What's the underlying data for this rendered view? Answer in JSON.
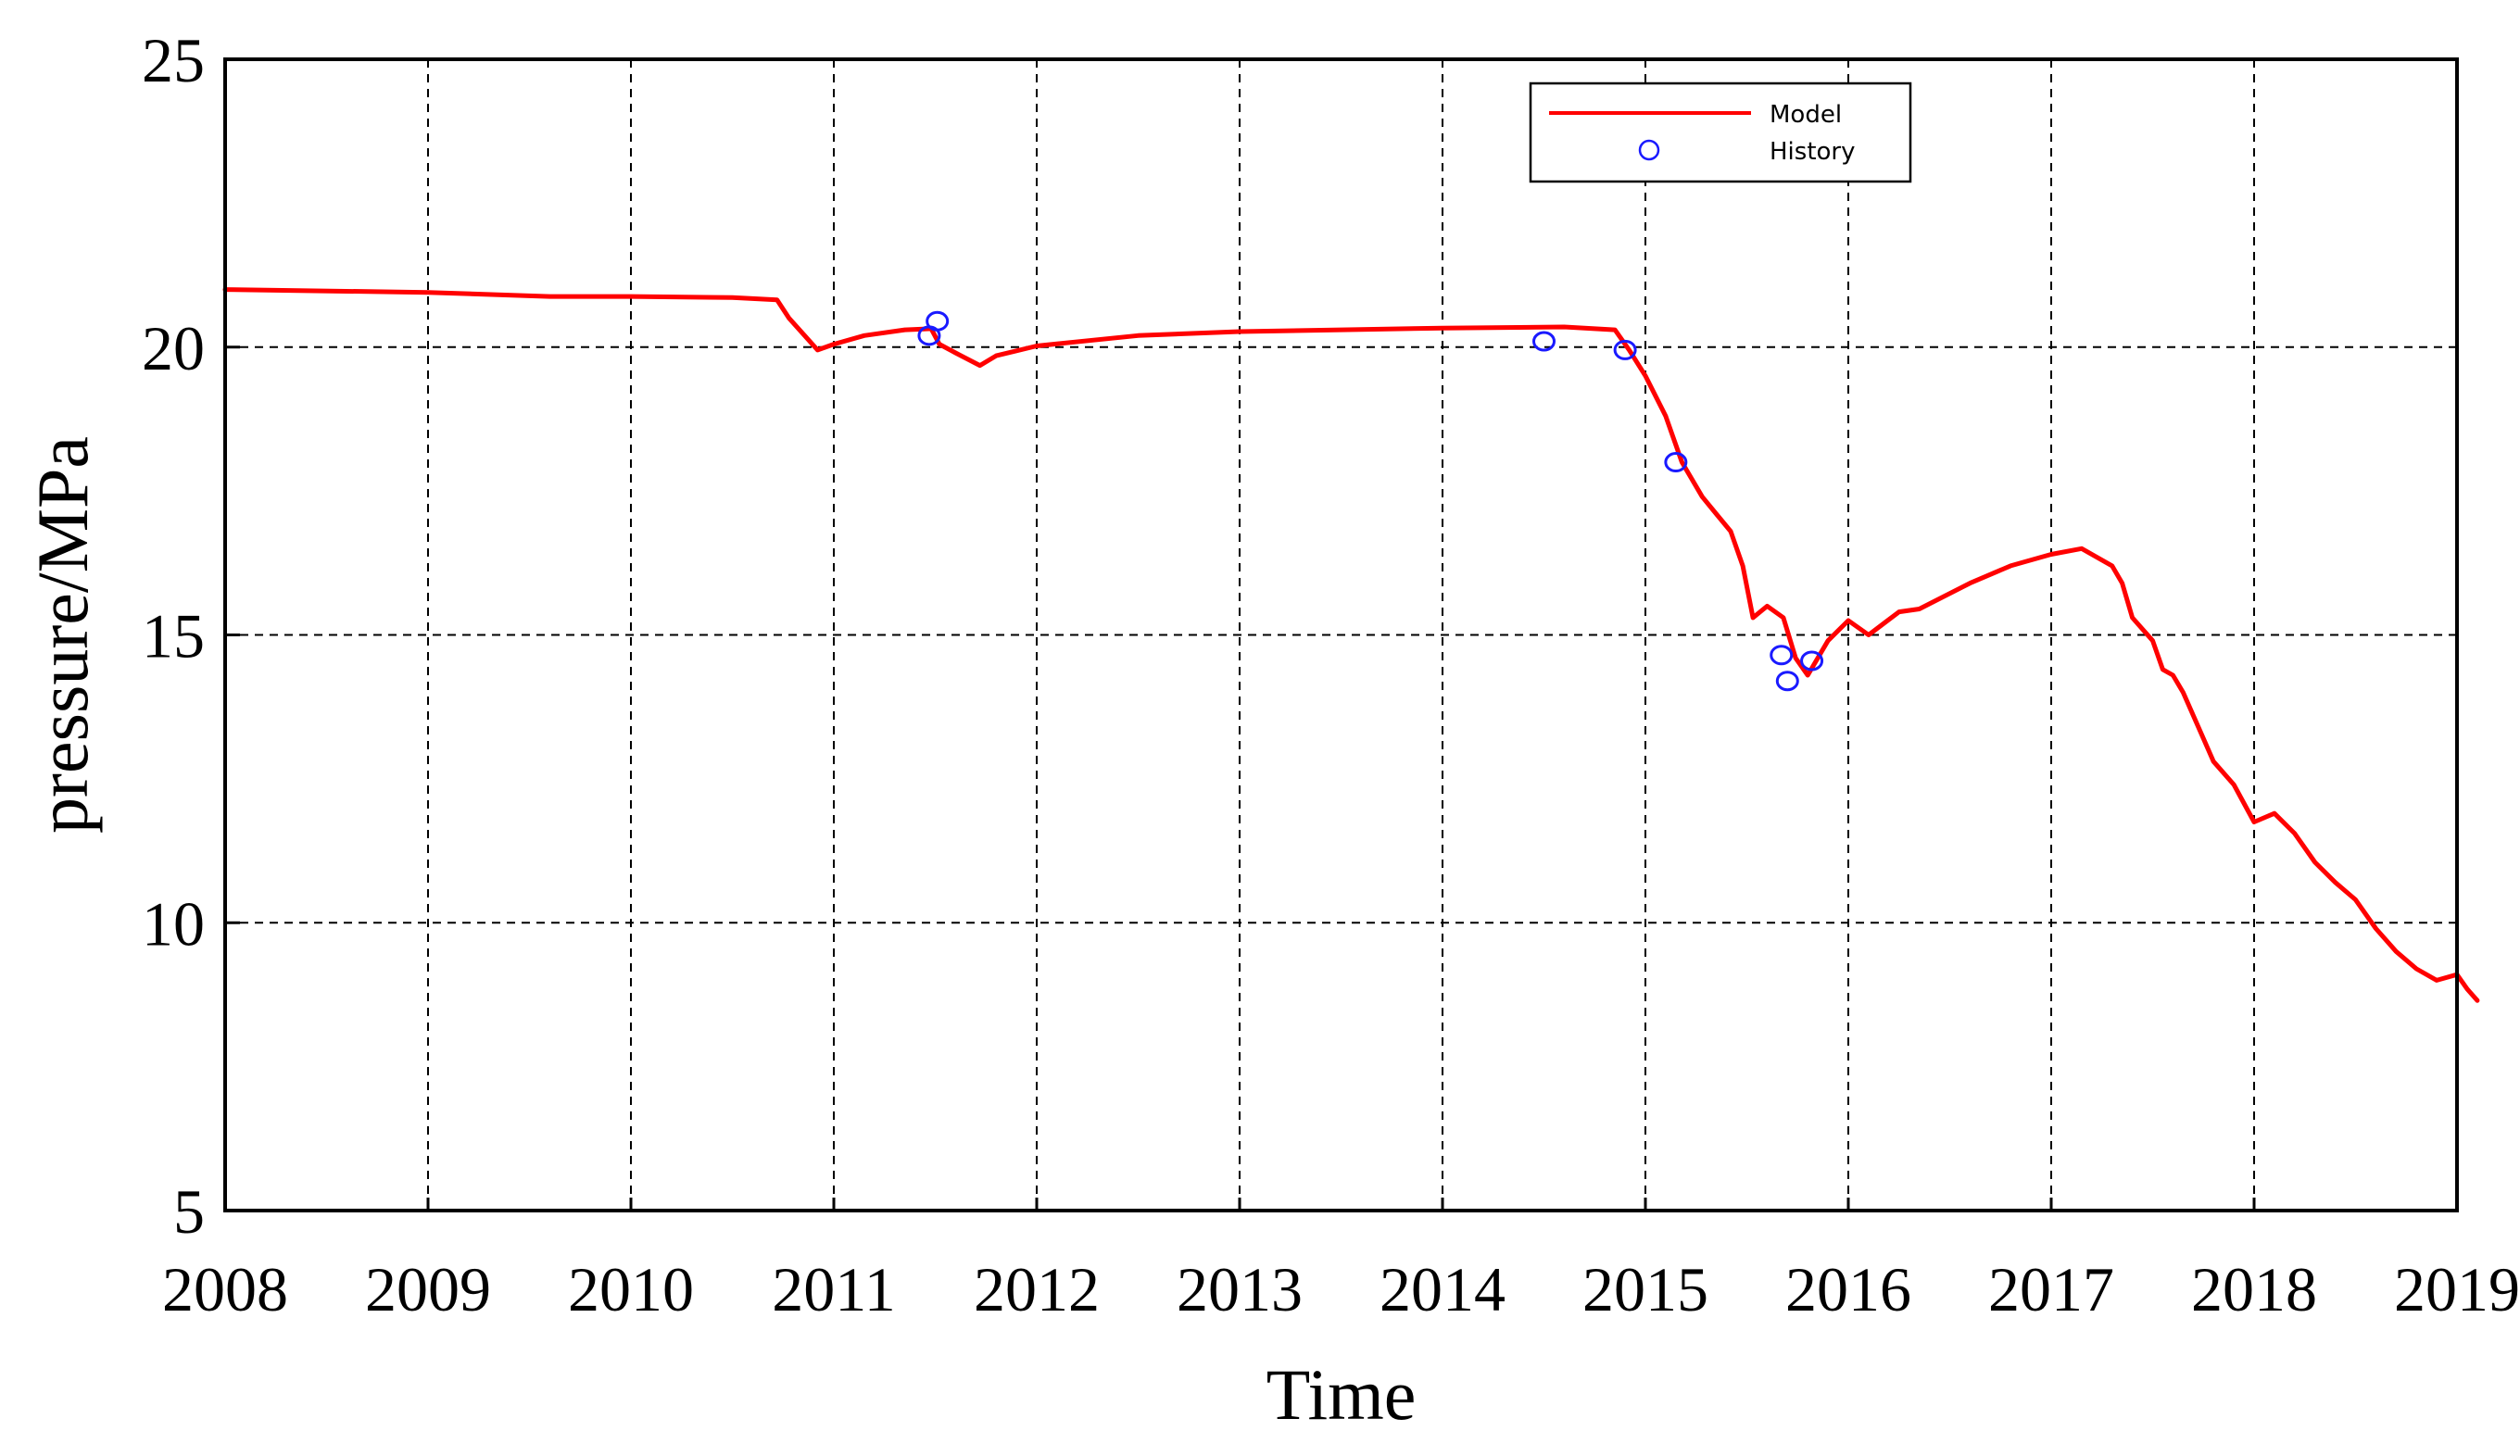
{
  "chart_data": {
    "type": "line",
    "title": "",
    "xlabel": "Time",
    "ylabel": "pressure/MPa",
    "xlim": [
      2008,
      2019
    ],
    "ylim": [
      5,
      25
    ],
    "x_ticks": [
      "2008",
      "2009",
      "2010",
      "2011",
      "2012",
      "2013",
      "2014",
      "2015",
      "2016",
      "2017",
      "2018",
      "2019"
    ],
    "y_ticks": [
      "5",
      "10",
      "15",
      "20",
      "25"
    ],
    "grid": true,
    "legend_position": "top-center",
    "series": [
      {
        "name": "Model",
        "style": "line",
        "color": "#ff0000",
        "x": [
          2008.0,
          2009.0,
          2009.6,
          2010.0,
          2010.5,
          2010.72,
          2010.78,
          2010.92,
          2011.0,
          2011.15,
          2011.35,
          2011.48,
          2011.52,
          2011.6,
          2011.72,
          2011.8,
          2012.0,
          2012.5,
          2013.0,
          2013.5,
          2014.0,
          2014.6,
          2014.85,
          2014.92,
          2015.0,
          2015.1,
          2015.18,
          2015.28,
          2015.35,
          2015.42,
          2015.48,
          2015.53,
          2015.6,
          2015.68,
          2015.74,
          2015.8,
          2015.9,
          2016.0,
          2016.1,
          2016.25,
          2016.35,
          2016.6,
          2016.8,
          2017.0,
          2017.15,
          2017.3,
          2017.35,
          2017.4,
          2017.5,
          2017.55,
          2017.6,
          2017.65,
          2017.75,
          2017.8,
          2017.9,
          2018.0,
          2018.1,
          2018.2,
          2018.3,
          2018.4,
          2018.5,
          2018.6,
          2018.7,
          2018.8,
          2018.9,
          2019.0,
          2019.05,
          2019.1
        ],
        "y": [
          21.0,
          20.95,
          20.88,
          20.88,
          20.86,
          20.82,
          20.5,
          19.95,
          20.05,
          20.2,
          20.3,
          20.32,
          20.05,
          19.9,
          19.68,
          19.85,
          20.02,
          20.2,
          20.27,
          20.3,
          20.33,
          20.35,
          20.3,
          19.95,
          19.5,
          18.8,
          18.0,
          17.4,
          17.1,
          16.8,
          16.2,
          15.3,
          15.5,
          15.3,
          14.6,
          14.3,
          14.9,
          15.25,
          15.0,
          15.4,
          15.45,
          15.9,
          16.2,
          16.4,
          16.5,
          16.2,
          15.9,
          15.3,
          14.9,
          14.4,
          14.3,
          14.0,
          13.2,
          12.8,
          12.4,
          11.75,
          11.9,
          11.55,
          11.05,
          10.7,
          10.4,
          9.9,
          9.5,
          9.2,
          9.0,
          9.1,
          8.85,
          8.65
        ]
      },
      {
        "name": "History",
        "style": "marker",
        "color": "#1a1aff",
        "x": [
          2011.47,
          2011.51,
          2014.5,
          2014.9,
          2015.15,
          2015.67,
          2015.7,
          2015.82
        ],
        "y": [
          20.2,
          20.45,
          20.1,
          19.95,
          18.0,
          14.65,
          14.2,
          14.55
        ]
      }
    ]
  }
}
